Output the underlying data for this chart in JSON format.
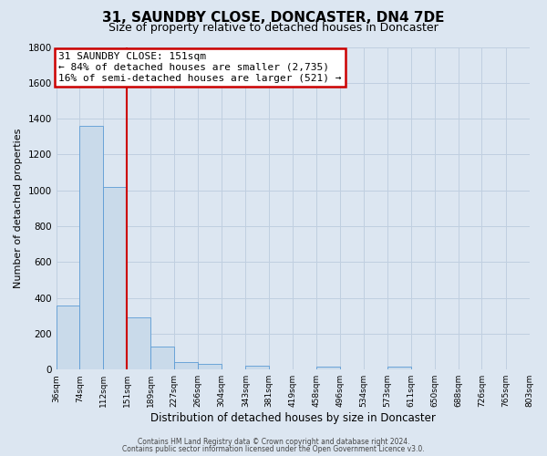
{
  "title": "31, SAUNDBY CLOSE, DONCASTER, DN4 7DE",
  "subtitle": "Size of property relative to detached houses in Doncaster",
  "xlabel": "Distribution of detached houses by size in Doncaster",
  "ylabel": "Number of detached properties",
  "footer_line1": "Contains HM Land Registry data © Crown copyright and database right 2024.",
  "footer_line2": "Contains public sector information licensed under the Open Government Licence v3.0.",
  "bar_edges": [
    36,
    74,
    112,
    151,
    189,
    227,
    266,
    304,
    343,
    381,
    419,
    458,
    496,
    534,
    573,
    611,
    650,
    688,
    726,
    765,
    803
  ],
  "bar_heights": [
    355,
    1360,
    1020,
    290,
    130,
    40,
    30,
    0,
    20,
    0,
    0,
    15,
    0,
    0,
    15,
    0,
    0,
    0,
    0,
    0
  ],
  "bar_color": "#c9daea",
  "bar_edge_color": "#5b9bd5",
  "grid_color": "#c0cfe0",
  "background_color": "#dce6f1",
  "redline_x": 151,
  "annotation_title": "31 SAUNDBY CLOSE: 151sqm",
  "annotation_line1": "← 84% of detached houses are smaller (2,735)",
  "annotation_line2": "16% of semi-detached houses are larger (521) →",
  "annotation_box_color": "#ffffff",
  "annotation_border_color": "#cc0000",
  "ylim": [
    0,
    1800
  ],
  "yticks": [
    0,
    200,
    400,
    600,
    800,
    1000,
    1200,
    1400,
    1600,
    1800
  ],
  "xtick_labels": [
    "36sqm",
    "74sqm",
    "112sqm",
    "151sqm",
    "189sqm",
    "227sqm",
    "266sqm",
    "304sqm",
    "343sqm",
    "381sqm",
    "419sqm",
    "458sqm",
    "496sqm",
    "534sqm",
    "573sqm",
    "611sqm",
    "650sqm",
    "688sqm",
    "726sqm",
    "765sqm",
    "803sqm"
  ],
  "redline_color": "#cc0000",
  "title_fontsize": 11,
  "subtitle_fontsize": 9,
  "ylabel_fontsize": 8,
  "xlabel_fontsize": 8.5
}
